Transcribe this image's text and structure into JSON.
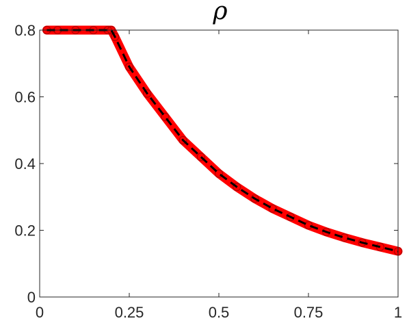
{
  "chart_data": {
    "type": "line",
    "title": "ρ",
    "xlabel": "",
    "ylabel": "",
    "xlim": [
      0,
      1
    ],
    "ylim": [
      0,
      0.8
    ],
    "xticks": [
      0,
      0.25,
      0.5,
      0.75,
      1
    ],
    "xtick_labels": [
      "0",
      "0.25",
      "0.5",
      "0.75",
      "1"
    ],
    "yticks": [
      0,
      0.2,
      0.4,
      0.6,
      0.8
    ],
    "ytick_labels": [
      "0",
      "0.2",
      "0.4",
      "0.6",
      "0.8"
    ],
    "grid": false,
    "box": true,
    "series": [
      {
        "style": "thick red line with circle markers",
        "color": "#ff0000",
        "x": [
          0.02,
          0.05,
          0.1,
          0.15,
          0.19,
          0.2,
          0.21,
          0.25,
          0.3,
          0.35,
          0.4,
          0.45,
          0.5,
          0.55,
          0.6,
          0.65,
          0.7,
          0.75,
          0.8,
          0.85,
          0.9,
          0.95,
          1.0
        ],
        "y": [
          0.8,
          0.8,
          0.8,
          0.8,
          0.8,
          0.8,
          0.78,
          0.69,
          0.61,
          0.54,
          0.47,
          0.42,
          0.37,
          0.33,
          0.295,
          0.265,
          0.24,
          0.215,
          0.195,
          0.178,
          0.163,
          0.15,
          0.137
        ]
      },
      {
        "style": "black dashed line",
        "color": "#000000",
        "x": [
          0.02,
          0.05,
          0.1,
          0.15,
          0.19,
          0.2,
          0.21,
          0.25,
          0.3,
          0.35,
          0.4,
          0.45,
          0.5,
          0.55,
          0.6,
          0.65,
          0.7,
          0.75,
          0.8,
          0.85,
          0.9,
          0.95,
          1.0
        ],
        "y": [
          0.8,
          0.8,
          0.8,
          0.8,
          0.8,
          0.8,
          0.78,
          0.69,
          0.61,
          0.54,
          0.47,
          0.42,
          0.37,
          0.33,
          0.295,
          0.265,
          0.24,
          0.215,
          0.195,
          0.178,
          0.163,
          0.15,
          0.137
        ]
      }
    ]
  }
}
